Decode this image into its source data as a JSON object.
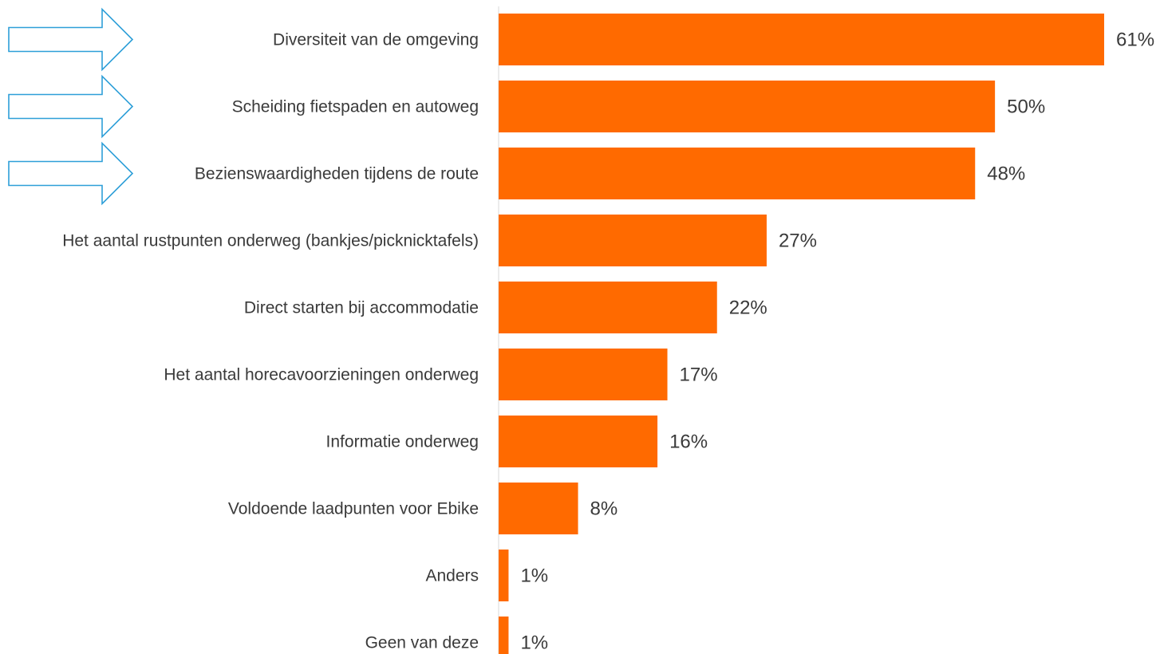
{
  "chart_data": {
    "type": "bar",
    "orientation": "horizontal",
    "categories": [
      "Diversiteit van de omgeving",
      "Scheiding fietspaden en autoweg",
      "Bezienswaardigheden tijdens de route",
      "Het aantal rustpunten onderweg (bankjes/picknicktafels)",
      "Direct starten bij accommodatie",
      "Het aantal horecavoorzieningen onderweg",
      "Informatie onderweg",
      "Voldoende laadpunten voor Ebike",
      "Anders",
      "Geen van deze"
    ],
    "values": [
      61,
      50,
      48,
      27,
      22,
      17,
      16,
      8,
      1,
      1
    ],
    "value_labels": [
      "61%",
      "50%",
      "48%",
      "27%",
      "22%",
      "17%",
      "16%",
      "8%",
      "1%",
      "1%"
    ],
    "unit": "%",
    "xlim": [
      0,
      61
    ],
    "highlighted_categories": [
      0,
      1,
      2
    ],
    "bar_color": "#ff6a00",
    "arrow_color": "#2e9fd8",
    "grid": false,
    "legend": "none"
  }
}
